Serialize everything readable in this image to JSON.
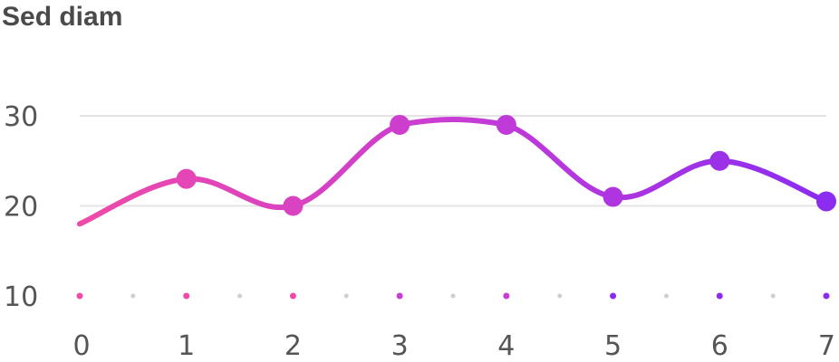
{
  "chart_data": {
    "type": "line",
    "title": "Sed diam",
    "xlabel": "",
    "ylabel": "",
    "x": [
      0,
      1,
      2,
      3,
      4,
      5,
      6,
      7
    ],
    "xticks": [
      "0",
      "1",
      "2",
      "3",
      "4",
      "5",
      "6",
      "7"
    ],
    "yticks": [
      "10",
      "20",
      "30"
    ],
    "ylim": [
      10,
      30
    ],
    "xlim": [
      0,
      7
    ],
    "series": [
      {
        "values": [
          18,
          23,
          20,
          29,
          29,
          21,
          25,
          20.5
        ],
        "markers": [
          false,
          true,
          true,
          true,
          true,
          true,
          true,
          true
        ]
      }
    ],
    "gradient": {
      "start": "#ef4aa8",
      "mid": "#c83cd4",
      "end": "#8b2cf0"
    },
    "grid": true,
    "legend": "none"
  }
}
